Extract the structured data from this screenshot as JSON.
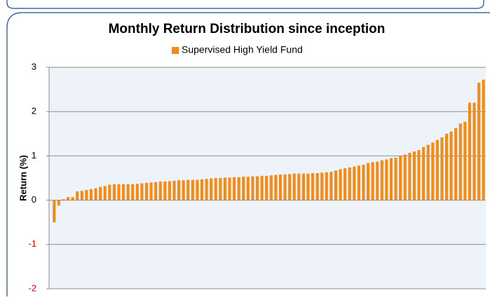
{
  "chart_data": {
    "type": "bar",
    "title": "Monthly Return Distribution since inception",
    "ylabel": "Return (%)",
    "series": [
      {
        "name": "Supervised High Yield Fund",
        "color": "#f58a14",
        "values": [
          -0.5,
          -0.12,
          0.02,
          0.07,
          0.07,
          0.2,
          0.21,
          0.23,
          0.25,
          0.27,
          0.3,
          0.32,
          0.35,
          0.36,
          0.36,
          0.36,
          0.36,
          0.36,
          0.37,
          0.38,
          0.39,
          0.4,
          0.41,
          0.42,
          0.42,
          0.43,
          0.44,
          0.45,
          0.45,
          0.46,
          0.46,
          0.46,
          0.47,
          0.48,
          0.49,
          0.5,
          0.5,
          0.51,
          0.51,
          0.52,
          0.52,
          0.53,
          0.53,
          0.54,
          0.54,
          0.55,
          0.55,
          0.56,
          0.57,
          0.58,
          0.58,
          0.59,
          0.6,
          0.6,
          0.6,
          0.6,
          0.61,
          0.61,
          0.62,
          0.63,
          0.64,
          0.67,
          0.7,
          0.72,
          0.74,
          0.76,
          0.78,
          0.8,
          0.84,
          0.86,
          0.87,
          0.9,
          0.92,
          0.95,
          0.96,
          1.0,
          1.03,
          1.07,
          1.1,
          1.13,
          1.2,
          1.25,
          1.3,
          1.36,
          1.42,
          1.5,
          1.55,
          1.63,
          1.73,
          1.77,
          2.2,
          2.2,
          2.65,
          2.72
        ]
      }
    ],
    "ylim": [
      -2,
      3
    ],
    "yticks": [
      -2,
      -1,
      0,
      1,
      2,
      3
    ],
    "grid": true,
    "negative_tick_color": "#ff0000",
    "legend": "top"
  }
}
